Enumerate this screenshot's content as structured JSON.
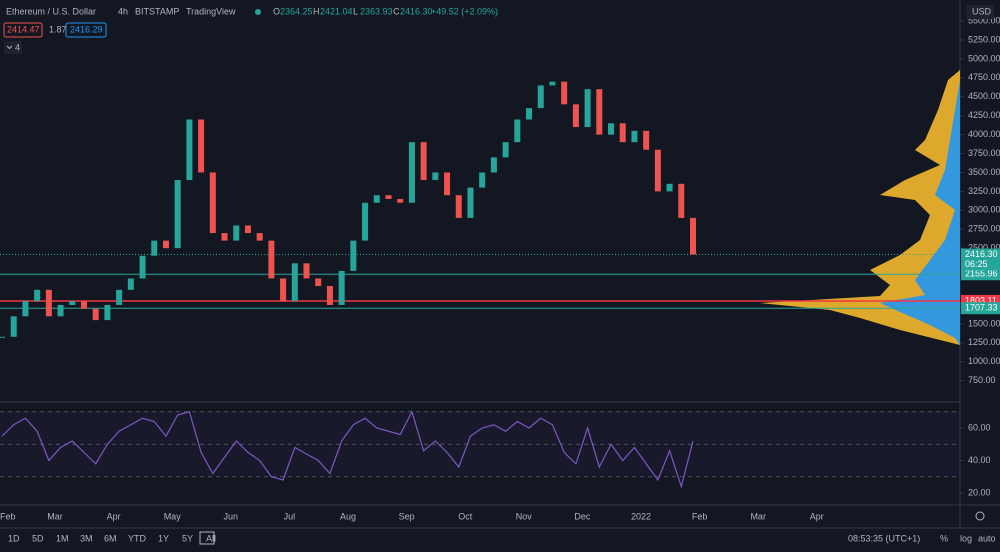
{
  "header": {
    "symbol": "Ethereum / U.S. Dollar",
    "interval": "4h",
    "exchange": "BITSTAMP",
    "source": "TradingView",
    "ohlc": [
      {
        "key": "O",
        "value": "2364.25"
      },
      {
        "key": "H",
        "value": "2421.04"
      },
      {
        "key": "L",
        "value": "2363.93"
      },
      {
        "key": "C",
        "value": "2416.30"
      }
    ],
    "change": "+49.52 (+2.09%)",
    "bid": "2414.47",
    "spread": "1.87",
    "ask": "2416.29",
    "indicators": "4",
    "currency": "USD"
  },
  "chart": {
    "price": {
      "values": [
        1330,
        1600,
        1800,
        1950,
        1600,
        1750,
        1800,
        1700,
        1550,
        1750,
        1950,
        2100,
        2400,
        2600,
        2500,
        3400,
        4200,
        3500,
        2700,
        2600,
        2800,
        2700,
        2600,
        2100,
        1800,
        2300,
        2100,
        2000,
        1750,
        2200,
        2600,
        3100,
        3200,
        3150,
        3100,
        3900,
        3400,
        3500,
        3200,
        2900,
        3300,
        3500,
        3700,
        3900,
        4200,
        4350,
        4650,
        4700,
        4400,
        4100,
        4600,
        4000,
        4150,
        3900,
        4050,
        3800,
        3250,
        3350,
        2900,
        2416.3
      ],
      "up_color": "#26a69a",
      "down_color": "#ef5350",
      "ylim": [
        5580,
        640
      ],
      "yticks": [
        {
          "value": 5500,
          "label": "5500.00"
        },
        {
          "value": 5250,
          "label": "5250.00"
        },
        {
          "value": 5000,
          "label": "5000.00"
        },
        {
          "value": 4750,
          "label": "4750.00"
        },
        {
          "value": 4500,
          "label": "4500.00"
        },
        {
          "value": 4250,
          "label": "4250.00"
        },
        {
          "value": 4000,
          "label": "4000.00"
        },
        {
          "value": 3750,
          "label": "3750.00"
        },
        {
          "value": 3500,
          "label": "3500.00"
        },
        {
          "value": 3250,
          "label": "3250.00"
        },
        {
          "value": 3000,
          "label": "3000.00"
        },
        {
          "value": 2750,
          "label": "2750.00"
        },
        {
          "value": 2500,
          "label": "2500.00"
        },
        {
          "value": 1750,
          "label": "1750.00"
        },
        {
          "value": 1500,
          "label": "1500.00"
        },
        {
          "value": 1250,
          "label": "1250.00"
        },
        {
          "value": 1000,
          "label": "1000.00"
        },
        {
          "value": 750,
          "label": "750.00"
        }
      ],
      "last": {
        "value": 2416.3,
        "label": "2416.30",
        "countdown": "06:25",
        "color": "#26a69a"
      },
      "levels": [
        {
          "value": 2155.96,
          "color": "#26a69a"
        },
        {
          "value": 1803.11,
          "color": "#f23645"
        },
        {
          "value": 1707.33,
          "color": "#26a69a"
        }
      ]
    },
    "rsi": {
      "values": [
        55,
        62,
        66,
        58,
        40,
        48,
        52,
        45,
        38,
        50,
        58,
        62,
        66,
        64,
        55,
        68,
        70,
        45,
        32,
        42,
        52,
        45,
        40,
        30,
        28,
        48,
        44,
        40,
        32,
        52,
        62,
        66,
        60,
        58,
        56,
        70,
        46,
        52,
        45,
        36,
        55,
        60,
        62,
        58,
        64,
        60,
        66,
        62,
        45,
        38,
        60,
        36,
        50,
        40,
        48,
        38,
        28,
        46,
        24,
        52
      ],
      "color": "#7e57c2",
      "ylim": [
        12,
        75
      ],
      "yticks": [
        {
          "value": 60,
          "label": "60.00"
        },
        {
          "value": 40,
          "label": "40.00"
        },
        {
          "value": 20,
          "label": "20.00"
        }
      ],
      "bands": [
        70,
        50,
        30
      ]
    },
    "months": [
      "Feb",
      "Mar",
      "Apr",
      "May",
      "Jun",
      "Jul",
      "Aug",
      "Sep",
      "Oct",
      "Nov",
      "Dec",
      "2022",
      "Feb",
      "Mar",
      "Apr"
    ]
  },
  "footer": {
    "ranges": [
      "1D",
      "5D",
      "1M",
      "3M",
      "6M",
      "YTD",
      "1Y",
      "5Y",
      "All"
    ],
    "clock": "08:53:35 (UTC+1)",
    "options": [
      "%",
      "log",
      "auto"
    ]
  }
}
